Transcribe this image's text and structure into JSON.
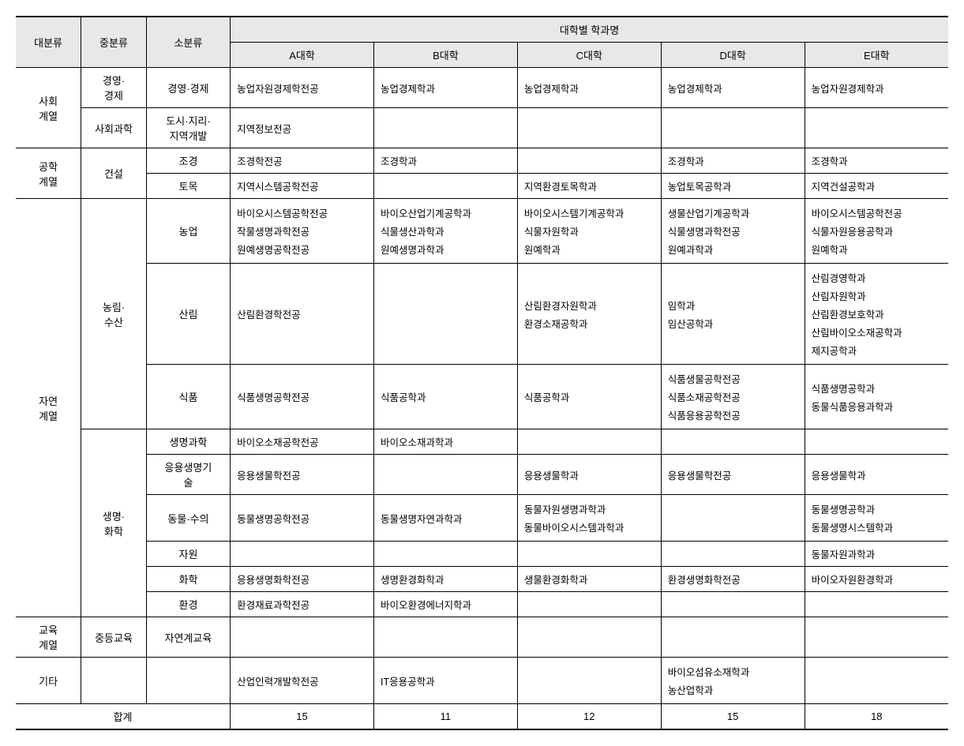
{
  "headers": {
    "cat1": "대분류",
    "cat2": "중분류",
    "cat3": "소분류",
    "group": "대학별 학과명",
    "univA": "A대학",
    "univB": "B대학",
    "univC": "C대학",
    "univD": "D대학",
    "univE": "E대학"
  },
  "cat1": {
    "social": "사회\n계열",
    "eng": "공학\n계열",
    "nature": "자연\n계열",
    "edu": "교육\n계열",
    "etc": "기타"
  },
  "cat2": {
    "bizEcon": "경영·\n경제",
    "socSci": "사회과학",
    "const": "건설",
    "agFor": "농림·\n수산",
    "lifeChem": "생명·\n화학",
    "secEdu": "중등교육",
    "etc": ""
  },
  "cat3": {
    "bizEcon": "경영·경제",
    "urban": "도시·지리·\n지역개발",
    "landscape": "조경",
    "civil": "토목",
    "agri": "농업",
    "forest": "산림",
    "food": "식품",
    "lifeSci": "생명과학",
    "appLife": "응용생명기\n술",
    "animal": "동물·수의",
    "resource": "자원",
    "chem": "화학",
    "env": "환경",
    "natEdu": "자연계교육",
    "etc": ""
  },
  "rows": {
    "bizEcon": {
      "A": "농업자원경제학전공",
      "B": "농업경제학과",
      "C": "농업경제학과",
      "D": "농업경제학과",
      "E": "농업자원경제학과"
    },
    "urban": {
      "A": "지역정보전공",
      "B": "",
      "C": "",
      "D": "",
      "E": ""
    },
    "landscape": {
      "A": "조경학전공",
      "B": "조경학과",
      "C": "",
      "D": "조경학과",
      "E": "조경학과"
    },
    "civil": {
      "A": "지역시스템공학전공",
      "B": "",
      "C": "지역환경토목학과",
      "D": "농업토목공학과",
      "E": "지역건설공학과"
    },
    "agri": {
      "A": [
        "바이오시스템공학전공",
        "작물생명과학전공",
        "원예생명공학전공"
      ],
      "B": [
        "바이오산업기계공학과",
        "식물생산과학과",
        "원예생명과학과"
      ],
      "C": [
        "바이오시스템기계공학과",
        "식물자원학과",
        "원예학과"
      ],
      "D": [
        "생물산업기계공학과",
        "식물생명과학전공",
        "원예과학과"
      ],
      "E": [
        "바이오시스템공학전공",
        "식물자원응용공학과",
        "원예학과"
      ]
    },
    "forest": {
      "A": "산림환경학전공",
      "B": "",
      "C": [
        "산림환경자원학과",
        "환경소재공학과"
      ],
      "D": [
        "임학과",
        "임산공학과"
      ],
      "E": [
        "산림경영학과",
        "산림자원학과",
        "산림환경보호학과",
        "산림바이오소재공학과",
        "제지공학과"
      ]
    },
    "food": {
      "A": "식품생명공학전공",
      "B": "식품공학과",
      "C": "식품공학과",
      "D": [
        "식품생물공학전공",
        "식품소재공학전공",
        "식품응용공학전공"
      ],
      "E": [
        "식품생명공학과",
        "동물식품응용과학과"
      ]
    },
    "lifeSci": {
      "A": "바이오소재공학전공",
      "B": "바이오소재과학과",
      "C": "",
      "D": "",
      "E": ""
    },
    "appLife": {
      "A": "응용생물학전공",
      "B": "",
      "C": "응용생물학과",
      "D": "응용생물학전공",
      "E": "응용생물학과"
    },
    "animal": {
      "A": "동물생명공학전공",
      "B": "동물생명자연과학과",
      "C": [
        "동물자원생명과학과",
        "동물바이오시스템과학과"
      ],
      "D": "",
      "E": [
        "동물생명공학과",
        "동물생명시스템학과"
      ]
    },
    "resource": {
      "A": "",
      "B": "",
      "C": "",
      "D": "",
      "E": "동물자원과학과"
    },
    "chem": {
      "A": "응용생명화학전공",
      "B": "생명환경화학과",
      "C": "생물환경화학과",
      "D": "환경생명화학전공",
      "E": "바이오자원환경학과"
    },
    "env": {
      "A": "환경재료과학전공",
      "B": "바이오환경에너지학과",
      "C": "",
      "D": "",
      "E": ""
    },
    "natEdu": {
      "A": "",
      "B": "",
      "C": "",
      "D": "",
      "E": ""
    },
    "etc": {
      "A": "산업인력개발학전공",
      "B": "IT응용공학과",
      "C": "",
      "D": [
        "바이오섬유소재학과",
        "농산업학과"
      ],
      "E": ""
    }
  },
  "totals": {
    "label": "합계",
    "A": "15",
    "B": "11",
    "C": "12",
    "D": "15",
    "E": "18"
  }
}
